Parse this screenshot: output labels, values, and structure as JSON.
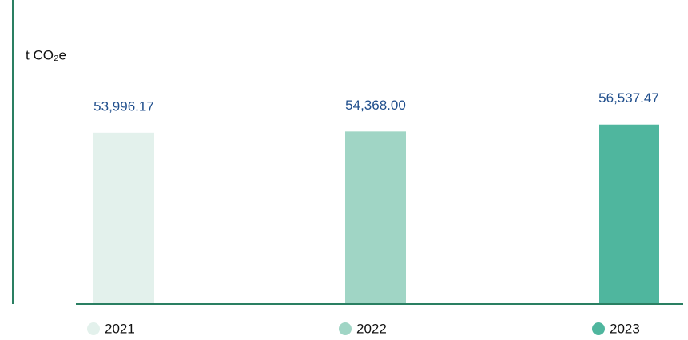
{
  "chart_data": {
    "type": "bar",
    "y_label": "t CO₂e",
    "categories": [
      "2021",
      "2022",
      "2023"
    ],
    "values": [
      53996.17,
      54368.0,
      56537.47
    ],
    "value_labels": [
      "53,996.17",
      "54,368.00",
      "56,537.47"
    ],
    "colors": [
      "#e3f1ec",
      "#a0d5c5",
      "#4fb69e"
    ],
    "ylim": [
      0,
      60000
    ]
  }
}
